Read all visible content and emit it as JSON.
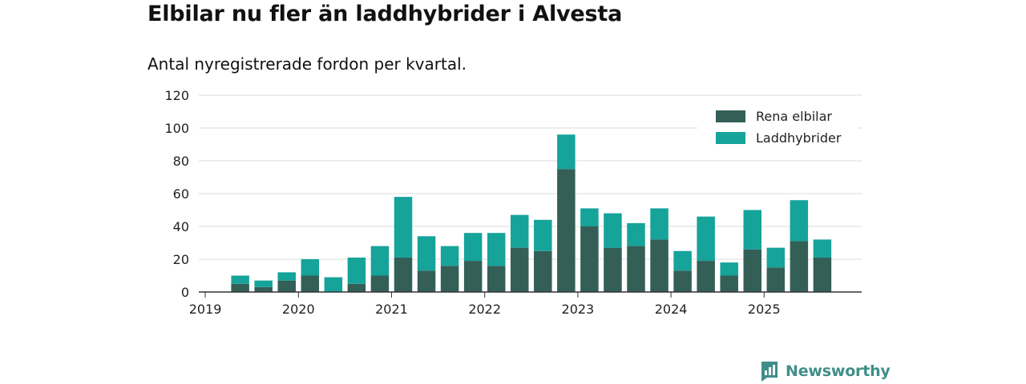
{
  "header": {
    "title": "Elbilar nu fler än laddhybrider i Alvesta",
    "subtitle": "Antal nyregistrerade fordon per kvartal."
  },
  "colors": {
    "electric": "#335f57",
    "hybrid": "#16a39a",
    "grid": "#dddddd",
    "axis": "#333333",
    "brand": "#3f8f88"
  },
  "brand": {
    "name": "Newsworthy",
    "icon": "newsworthy-logo-icon"
  },
  "chart_data": {
    "type": "bar",
    "stacked": true,
    "title": "Elbilar nu fler än laddhybrider i Alvesta",
    "subtitle": "Antal nyregistrerade fordon per kvartal.",
    "xlabel": "",
    "ylabel": "",
    "ylim": [
      0,
      120
    ],
    "yticks": [
      0,
      20,
      40,
      60,
      80,
      100,
      120
    ],
    "year_ticks": [
      "2019",
      "2020",
      "2021",
      "2022",
      "2023",
      "2024",
      "2025"
    ],
    "legend_position": "top-right",
    "categories": [
      "2019 Q1",
      "2019 Q2",
      "2019 Q3",
      "2019 Q4",
      "2020 Q1",
      "2020 Q2",
      "2020 Q3",
      "2020 Q4",
      "2021 Q1",
      "2021 Q2",
      "2021 Q3",
      "2021 Q4",
      "2022 Q1",
      "2022 Q2",
      "2022 Q3",
      "2022 Q4",
      "2023 Q1",
      "2023 Q2",
      "2023 Q3",
      "2023 Q4",
      "2024 Q1",
      "2024 Q2",
      "2024 Q3",
      "2024 Q4",
      "2025 Q1",
      "2025 Q2",
      "2025 Q3"
    ],
    "series": [
      {
        "name": "Rena elbilar",
        "color": "#335f57",
        "values": [
          0,
          5,
          3,
          7,
          10,
          0,
          5,
          10,
          21,
          13,
          16,
          19,
          16,
          27,
          25,
          75,
          40,
          27,
          28,
          32,
          13,
          19,
          10,
          26,
          15,
          31,
          21
        ]
      },
      {
        "name": "Laddhybrider",
        "color": "#16a39a",
        "values": [
          0,
          5,
          4,
          5,
          10,
          9,
          16,
          18,
          37,
          21,
          12,
          17,
          20,
          20,
          19,
          21,
          11,
          21,
          14,
          19,
          12,
          27,
          8,
          24,
          12,
          25,
          11
        ]
      }
    ]
  }
}
